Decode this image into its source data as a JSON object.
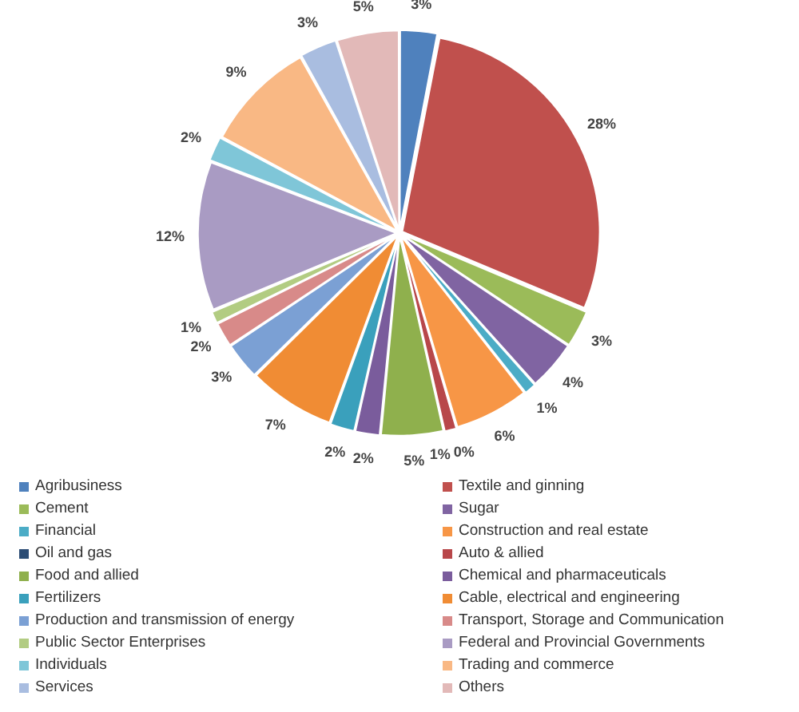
{
  "chart_data": {
    "type": "pie",
    "categories": [
      "Agribusiness",
      "Textile and ginning",
      "Cement",
      "Sugar",
      "Financial",
      "Construction and real estate",
      "Oil and gas",
      "Auto & allied",
      "Food and allied",
      "Chemical and pharmaceuticals",
      "Fertilizers",
      "Cable, electrical and engineering",
      "Production and transmission of energy",
      "Transport, Storage and Communication",
      "Public Sector Enterprises",
      "Federal and Provincial Governments",
      "Individuals",
      "Trading and commerce",
      "Services",
      "Others"
    ],
    "values": [
      3,
      28,
      3,
      4,
      1,
      6,
      0,
      1,
      5,
      2,
      2,
      7,
      3,
      2,
      1,
      12,
      2,
      9,
      3,
      5
    ],
    "value_labels": [
      "3%",
      "28%",
      "3%",
      "4%",
      "1%",
      "6%",
      "0%",
      "1%",
      "5%",
      "2%",
      "2%",
      "7%",
      "3%",
      "2%",
      "1%",
      "12%",
      "2%",
      "9%",
      "3%",
      "5%"
    ],
    "colors": [
      "#4f81bd",
      "#c0504d",
      "#9bbb59",
      "#8064a2",
      "#4bacc6",
      "#f79646",
      "#2c4d75",
      "#b8474a",
      "#8fb04d",
      "#7a5c9c",
      "#3aa0bc",
      "#f08c34",
      "#7ba0d4",
      "#d88a89",
      "#b2cc82",
      "#a99bc3",
      "#7fc6d8",
      "#f9b884",
      "#a9bde0",
      "#e2b9b8"
    ],
    "legend": "bottom"
  }
}
